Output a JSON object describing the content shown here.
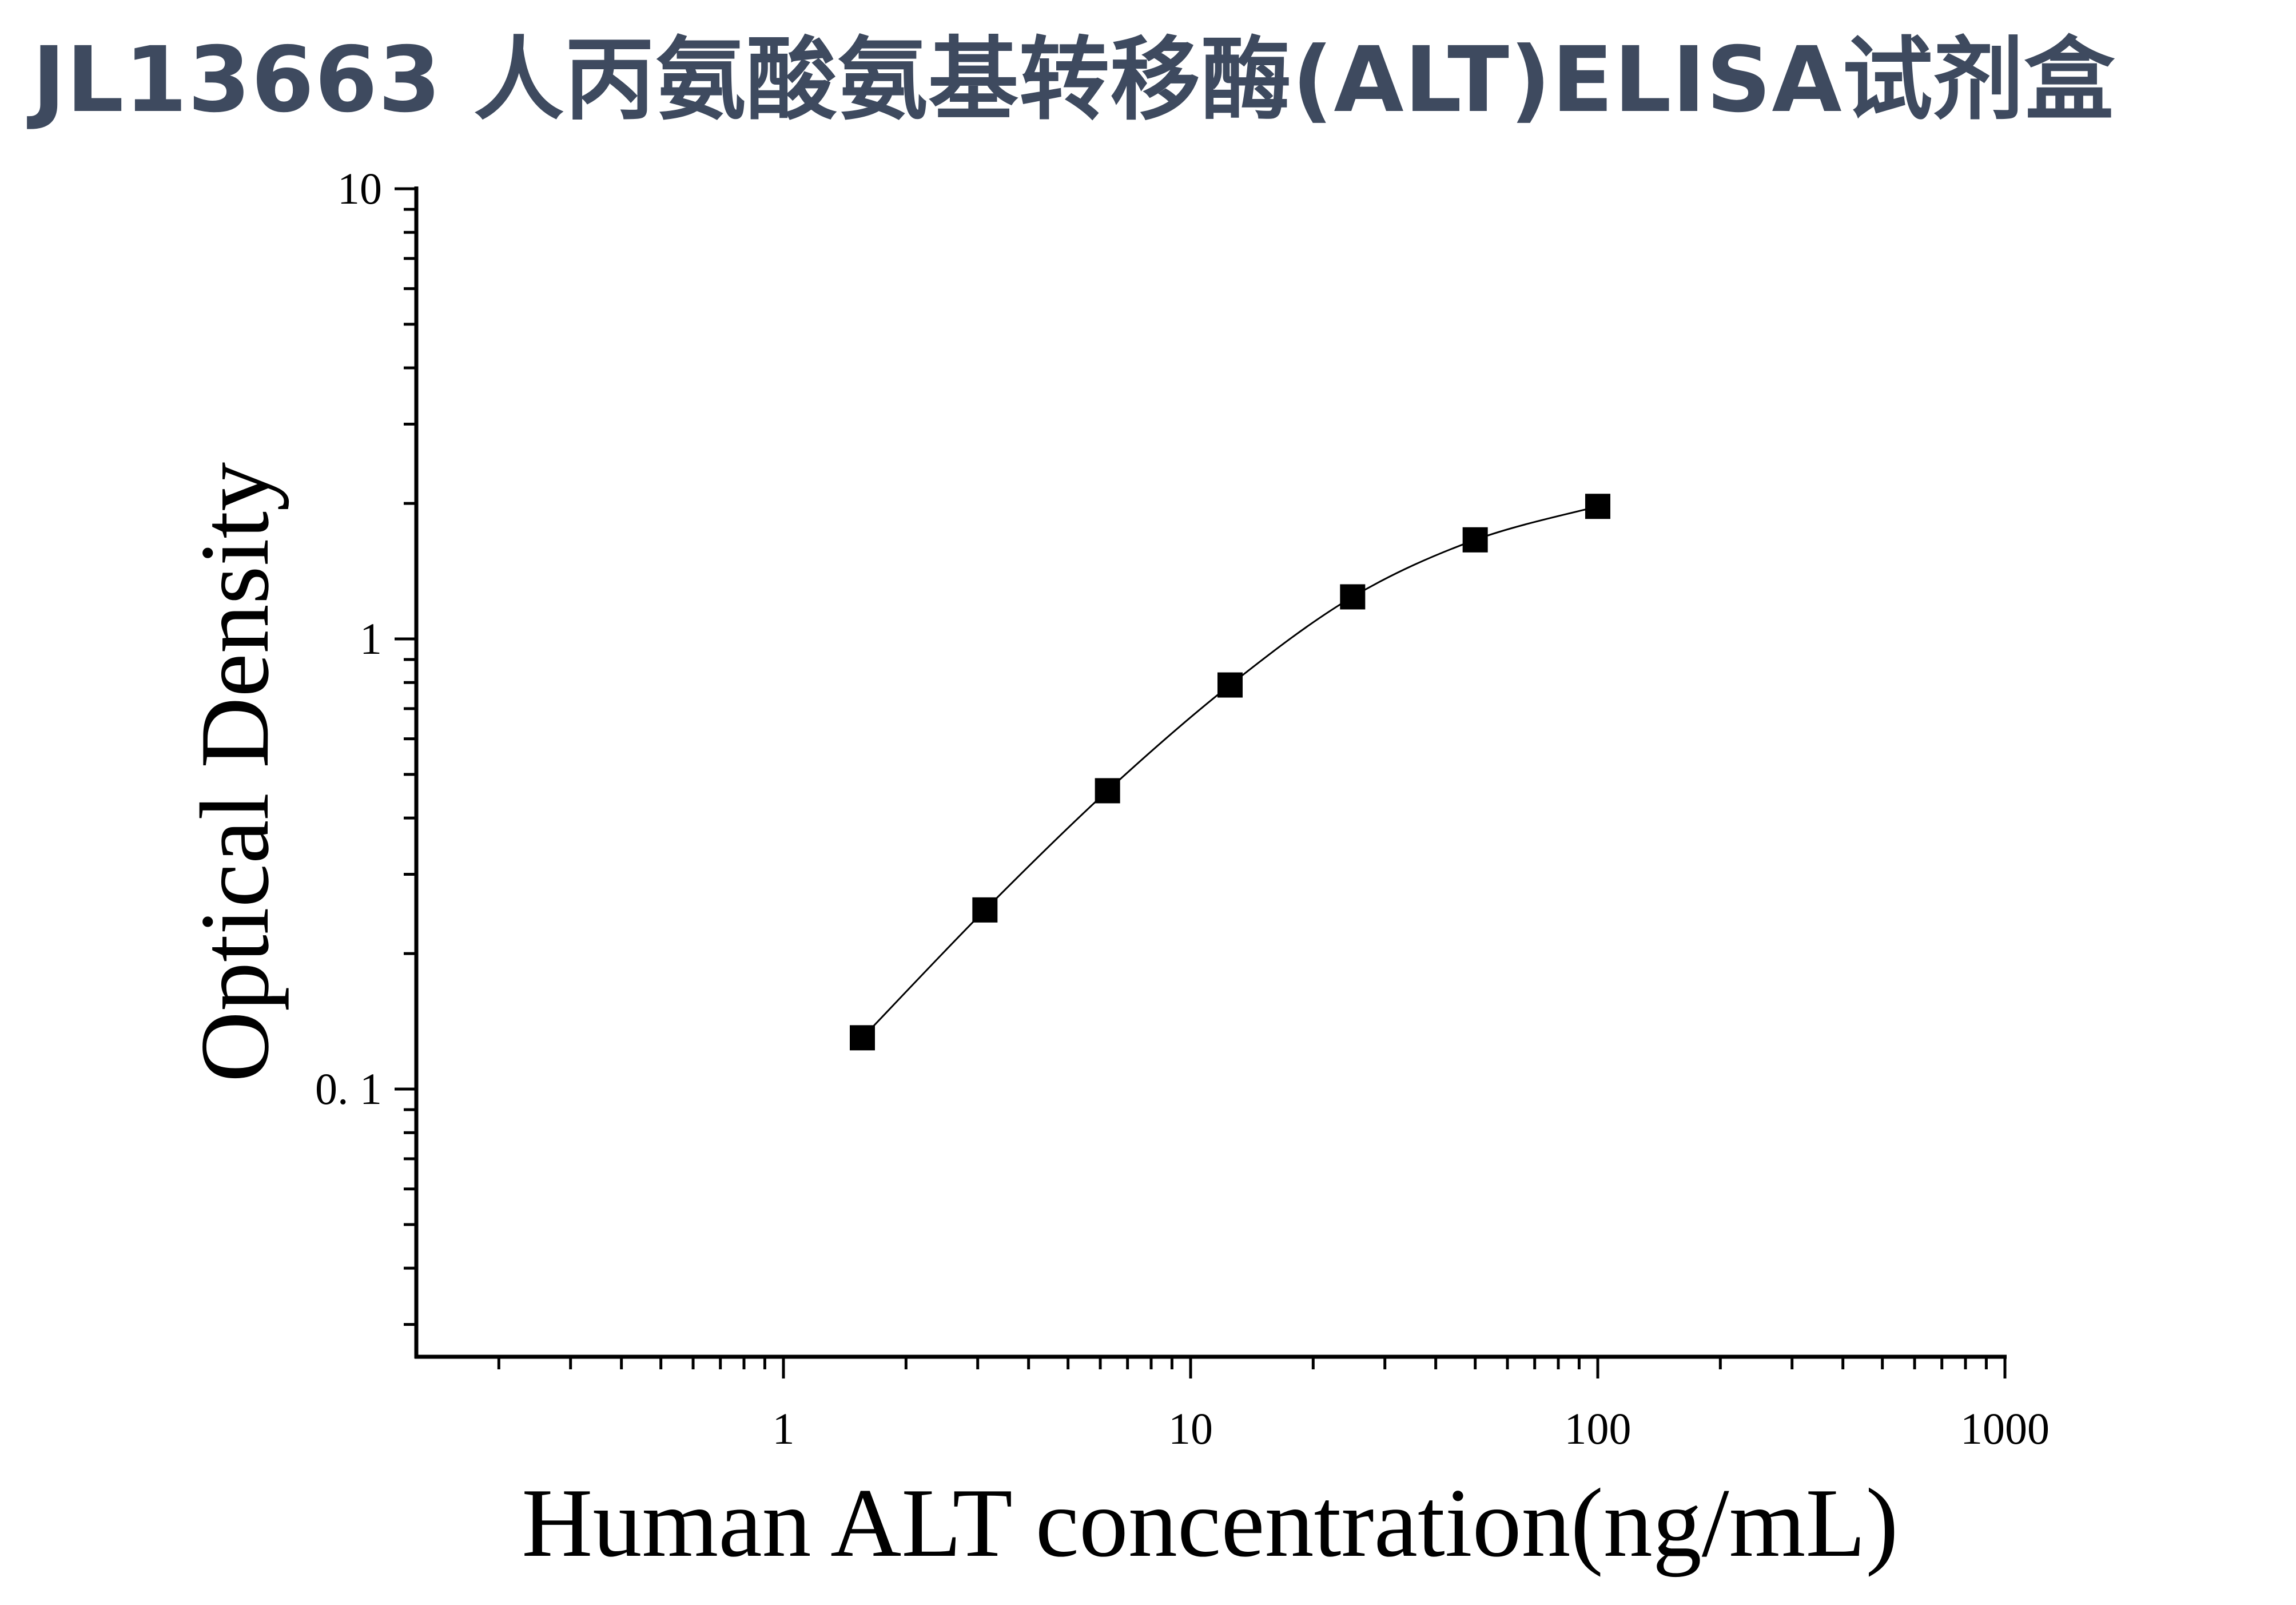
{
  "title": "JL13663 人丙氨酸氨基转移酶(ALT)ELISA试剂盒",
  "chart_data": {
    "type": "scatter",
    "title": "JL13663 人丙氨酸氨基转移酶(ALT)ELISA试剂盒",
    "xlabel": "Human ALT concentration(ng/mL)",
    "ylabel": "Optical Density",
    "x_scale": "log",
    "y_scale": "log",
    "xlim": [
      0.1,
      1000
    ],
    "ylim": [
      0.025,
      10
    ],
    "x_tick_labels": [
      "1",
      "10",
      "100",
      "1000"
    ],
    "y_tick_labels": [
      "0. 1",
      "1",
      "10"
    ],
    "grid": false,
    "marker": "square",
    "marker_color": "#000000",
    "fit_curve": true,
    "x": [
      1.5625,
      3.125,
      6.25,
      12.5,
      25,
      50,
      100
    ],
    "y": [
      0.13,
      0.25,
      0.46,
      0.79,
      1.24,
      1.66,
      1.97
    ]
  }
}
